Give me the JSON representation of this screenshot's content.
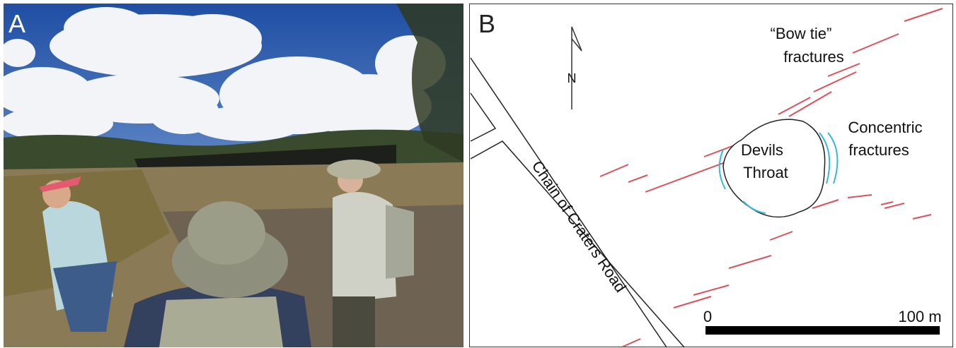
{
  "panel_a": {
    "label": "A"
  },
  "panel_b": {
    "label": "B",
    "north_label": "N",
    "road_label": "Chain of Craters Road",
    "crater_label": [
      "Devils",
      "Throat"
    ],
    "bow_tie_label": [
      "“Bow tie”",
      "fractures"
    ],
    "concentric_label": [
      "Concentric",
      "fractures"
    ],
    "scale_bar": {
      "start_label": "0",
      "end_label": "100 m"
    }
  }
}
